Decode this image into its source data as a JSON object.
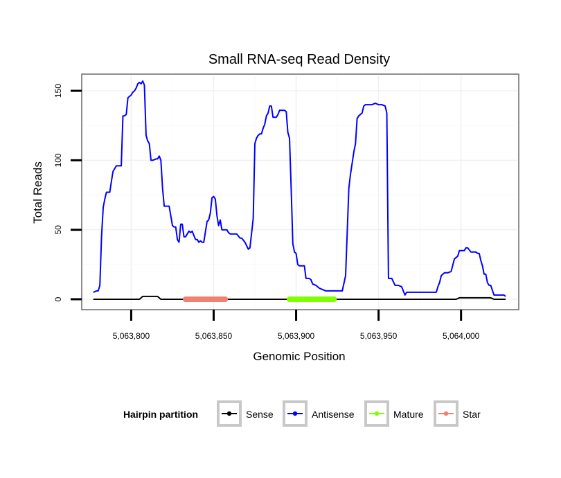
{
  "chart_data": {
    "type": "line",
    "title": "Small RNA-seq Read Density",
    "xlabel": "Genomic Position",
    "ylabel": "Total Reads",
    "xlim": [
      5063770,
      5064035
    ],
    "ylim": [
      -7.5,
      162
    ],
    "x_ticks": [
      5063800,
      5063850,
      5063900,
      5063950,
      5064000
    ],
    "x_tick_labels": [
      "5,063,800",
      "5,063,850",
      "5,063,900",
      "5,063,950",
      "5,064,000"
    ],
    "y_ticks": [
      0,
      50,
      100,
      150
    ],
    "y_tick_labels": [
      "0",
      "50",
      "100",
      "150"
    ],
    "grid": true,
    "legend": {
      "title": "Hairpin partition",
      "position": "bottom",
      "entries": [
        {
          "label": "Sense",
          "color": "#000000"
        },
        {
          "label": "Antisense",
          "color": "#0000ff"
        },
        {
          "label": "Mature",
          "color": "#7fff00"
        },
        {
          "label": "Star",
          "color": "#f08070"
        }
      ]
    },
    "series": [
      {
        "name": "Antisense",
        "color": "#0000ff",
        "x": [
          5063777,
          5063779,
          5063780,
          5063781,
          5063782,
          5063783,
          5063784,
          5063785,
          5063786,
          5063787,
          5063788,
          5063789,
          5063790,
          5063791,
          5063793,
          5063794,
          5063795,
          5063796,
          5063797,
          5063798,
          5063799,
          5063800,
          5063801,
          5063802,
          5063803,
          5063804,
          5063805,
          5063806,
          5063807,
          5063808,
          5063809,
          5063810,
          5063811,
          5063812,
          5063813,
          5063815,
          5063816,
          5063817,
          5063818,
          5063819,
          5063820,
          5063821,
          5063822,
          5063823,
          5063824,
          5063825,
          5063826,
          5063827,
          5063828,
          5063829,
          5063830,
          5063831,
          5063832,
          5063833,
          5063834,
          5063835,
          5063836,
          5063837,
          5063838,
          5063839,
          5063840,
          5063841,
          5063842,
          5063843,
          5063844,
          5063846,
          5063847,
          5063848,
          5063849,
          5063850,
          5063851,
          5063852,
          5063853,
          5063854,
          5063855,
          5063856,
          5063857,
          5063858,
          5063859,
          5063860,
          5063862,
          5063864,
          5063866,
          5063867,
          5063869,
          5063871,
          5063872,
          5063874,
          5063875,
          5063876,
          5063877,
          5063878,
          5063879,
          5063880,
          5063881,
          5063882,
          5063883,
          5063884,
          5063885,
          5063886,
          5063887,
          5063888,
          5063889,
          5063890,
          5063891,
          5063892,
          5063893,
          5063894,
          5063895,
          5063896,
          5063897,
          5063898,
          5063899,
          5063900,
          5063901,
          5063902,
          5063903,
          5063904,
          5063905,
          5063906,
          5063907,
          5063908,
          5063909,
          5063910,
          5063912,
          5063914,
          5063916,
          5063918,
          5063919,
          5063920,
          5063921,
          5063922,
          5063923,
          5063924,
          5063926,
          5063928,
          5063930,
          5063932,
          5063933,
          5063934,
          5063935,
          5063936,
          5063937,
          5063938,
          5063939,
          5063940,
          5063941,
          5063942,
          5063943,
          5063944,
          5063945,
          5063946,
          5063948,
          5063950,
          5063952,
          5063954,
          5063955,
          5063956,
          5063958,
          5063960,
          5063962,
          5063964,
          5063966,
          5063967,
          5063968,
          5063969,
          5063970,
          5063971,
          5063972,
          5063973,
          5063974,
          5063975,
          5063976,
          5063977,
          5063978,
          5063980,
          5063982,
          5063984,
          5063985,
          5063986,
          5063987,
          5063988,
          5063990,
          5063992,
          5063994,
          5063996,
          5063998,
          5063999,
          5064000,
          5064001,
          5064002,
          5064003,
          5064004,
          5064006,
          5064008,
          5064009,
          5064010,
          5064011,
          5064012,
          5064013,
          5064014,
          5064015,
          5064016,
          5064017,
          5064018,
          5064020,
          5064022,
          5064024,
          5064026,
          5064027
        ],
        "values": [
          5,
          6,
          6,
          10,
          45,
          66,
          72,
          77,
          77,
          77,
          85,
          92,
          94,
          96,
          96,
          96,
          132,
          132,
          133,
          145,
          146,
          147,
          149,
          150,
          152,
          155,
          156,
          155,
          157,
          154,
          118,
          114,
          112,
          100,
          100,
          101,
          101,
          103,
          100,
          80,
          67,
          67,
          67,
          67,
          60,
          53,
          52,
          52,
          43,
          41,
          54,
          54,
          45,
          45,
          47,
          49,
          48,
          49,
          46,
          43,
          43,
          41,
          42,
          41,
          41,
          56,
          57,
          62,
          73,
          74,
          72,
          60,
          53,
          57,
          50,
          50,
          50,
          50,
          48,
          47,
          47,
          47,
          44,
          44,
          41,
          36,
          37,
          58,
          112,
          116,
          118,
          119,
          119,
          123,
          126,
          132,
          134,
          139,
          139,
          131,
          131,
          131,
          133,
          136,
          136,
          136,
          136,
          135,
          120,
          116,
          80,
          40,
          34,
          33,
          25,
          24,
          24,
          24,
          24,
          15,
          15,
          15,
          14,
          11,
          10,
          8,
          7,
          6,
          6,
          6,
          6,
          6,
          6,
          6,
          6,
          6,
          17,
          80,
          90,
          98,
          106,
          112,
          130,
          132,
          133,
          134,
          139,
          140,
          140,
          140,
          140,
          140,
          141,
          140,
          140,
          139,
          134,
          15,
          15,
          10,
          10,
          9,
          3,
          5,
          5,
          5,
          5,
          5,
          5,
          5,
          5,
          5,
          5,
          5,
          5,
          5,
          5,
          5,
          5,
          9,
          12,
          17,
          19,
          19,
          20,
          29,
          31,
          35,
          35,
          35,
          35,
          37,
          37,
          34,
          34,
          34,
          33,
          33,
          28,
          24,
          18,
          18,
          12,
          10,
          10,
          3,
          3,
          3,
          3,
          2
        ]
      },
      {
        "name": "Sense",
        "color": "#000000",
        "x": [
          5063777,
          5063805,
          5063807,
          5063816,
          5063818,
          5063997,
          5063999,
          5064018,
          5064020,
          5064027
        ],
        "values": [
          0,
          0,
          2,
          2,
          0,
          0,
          1,
          1,
          0,
          0
        ]
      },
      {
        "name": "Mature",
        "color": "#7fff00",
        "x": [
          5063896,
          5063923
        ],
        "values": [
          0,
          0
        ]
      },
      {
        "name": "Star",
        "color": "#f08070",
        "x": [
          5063833,
          5063857
        ],
        "values": [
          0,
          0
        ]
      }
    ]
  }
}
